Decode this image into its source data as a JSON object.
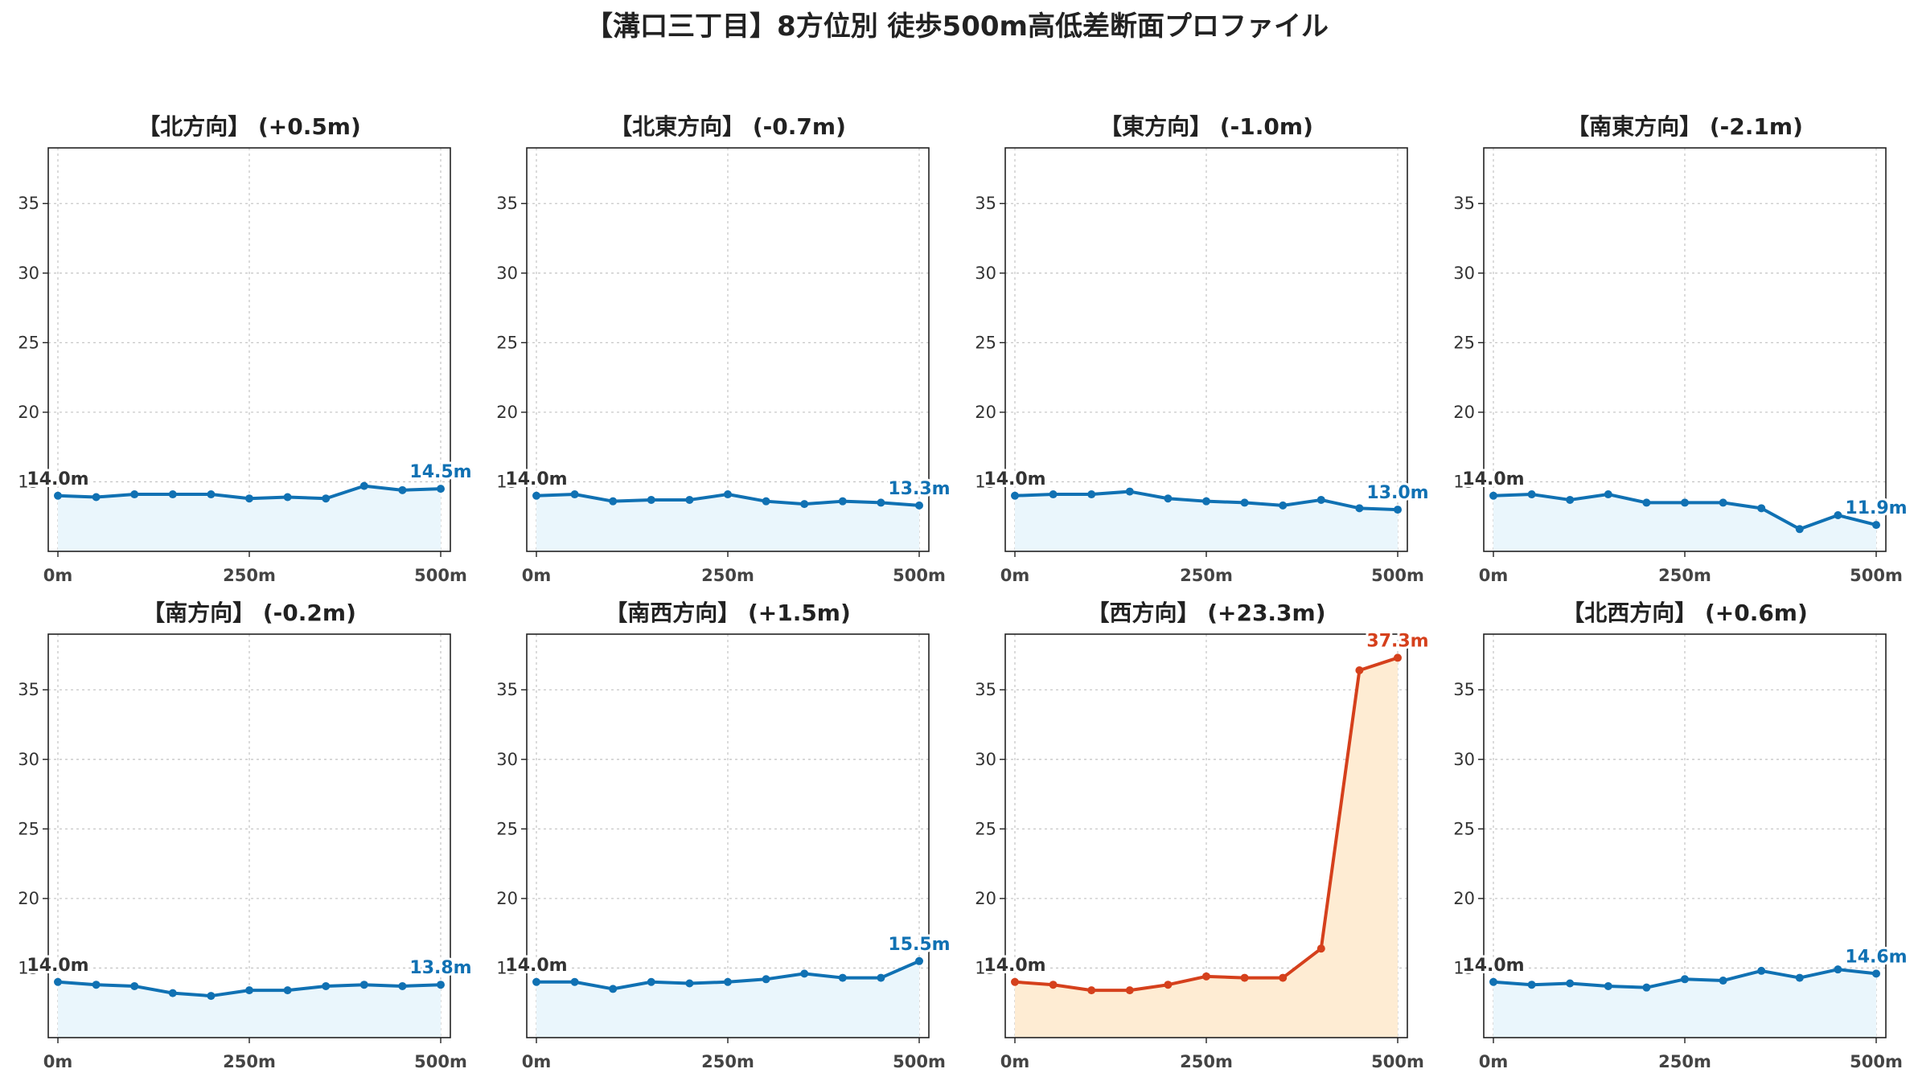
{
  "title": "【溝口三丁目】8方位別 徒歩500m高低差断面プロファイル",
  "colors": {
    "normal_line": "#1071b3",
    "normal_fill": "#eaf6fc",
    "highlight_line": "#d5401c",
    "highlight_fill": "#feecd3",
    "start_label": "#333333"
  },
  "chart_data": [
    {
      "type": "area",
      "title": "【北方向】 (+0.5m)",
      "x": [
        0,
        50,
        100,
        150,
        200,
        250,
        300,
        350,
        400,
        450,
        500
      ],
      "y": [
        14.0,
        13.9,
        14.1,
        14.1,
        14.1,
        13.8,
        13.9,
        13.8,
        14.7,
        14.4,
        14.5
      ],
      "ylim": [
        10.0,
        39.0
      ],
      "yticks": [
        15,
        20,
        25,
        30,
        35
      ],
      "xticks": [
        0,
        250,
        500
      ],
      "xtick_labels": [
        "0m",
        "250m",
        "500m"
      ],
      "start_label": "14.0m",
      "end_label": "14.5m",
      "highlight": false,
      "grid": true
    },
    {
      "type": "area",
      "title": "【北東方向】 (-0.7m)",
      "x": [
        0,
        50,
        100,
        150,
        200,
        250,
        300,
        350,
        400,
        450,
        500
      ],
      "y": [
        14.0,
        14.1,
        13.6,
        13.7,
        13.7,
        14.1,
        13.6,
        13.4,
        13.6,
        13.5,
        13.3
      ],
      "ylim": [
        10.0,
        39.0
      ],
      "yticks": [
        15,
        20,
        25,
        30,
        35
      ],
      "xticks": [
        0,
        250,
        500
      ],
      "xtick_labels": [
        "0m",
        "250m",
        "500m"
      ],
      "start_label": "14.0m",
      "end_label": "13.3m",
      "highlight": false,
      "grid": true
    },
    {
      "type": "area",
      "title": "【東方向】 (-1.0m)",
      "x": [
        0,
        50,
        100,
        150,
        200,
        250,
        300,
        350,
        400,
        450,
        500
      ],
      "y": [
        14.0,
        14.1,
        14.1,
        14.3,
        13.8,
        13.6,
        13.5,
        13.3,
        13.7,
        13.1,
        13.0
      ],
      "ylim": [
        10.0,
        39.0
      ],
      "yticks": [
        15,
        20,
        25,
        30,
        35
      ],
      "xticks": [
        0,
        250,
        500
      ],
      "xtick_labels": [
        "0m",
        "250m",
        "500m"
      ],
      "start_label": "14.0m",
      "end_label": "13.0m",
      "highlight": false,
      "grid": true
    },
    {
      "type": "area",
      "title": "【南東方向】 (-2.1m)",
      "x": [
        0,
        50,
        100,
        150,
        200,
        250,
        300,
        350,
        400,
        450,
        500
      ],
      "y": [
        14.0,
        14.1,
        13.7,
        14.1,
        13.5,
        13.5,
        13.5,
        13.1,
        11.6,
        12.6,
        11.9
      ],
      "ylim": [
        10.0,
        39.0
      ],
      "yticks": [
        15,
        20,
        25,
        30,
        35
      ],
      "xticks": [
        0,
        250,
        500
      ],
      "xtick_labels": [
        "0m",
        "250m",
        "500m"
      ],
      "start_label": "14.0m",
      "end_label": "11.9m",
      "highlight": false,
      "grid": true
    },
    {
      "type": "area",
      "title": "【南方向】 (-0.2m)",
      "x": [
        0,
        50,
        100,
        150,
        200,
        250,
        300,
        350,
        400,
        450,
        500
      ],
      "y": [
        14.0,
        13.8,
        13.7,
        13.2,
        13.0,
        13.4,
        13.4,
        13.7,
        13.8,
        13.7,
        13.8
      ],
      "ylim": [
        10.0,
        39.0
      ],
      "yticks": [
        15,
        20,
        25,
        30,
        35
      ],
      "xticks": [
        0,
        250,
        500
      ],
      "xtick_labels": [
        "0m",
        "250m",
        "500m"
      ],
      "start_label": "14.0m",
      "end_label": "13.8m",
      "highlight": false,
      "grid": true
    },
    {
      "type": "area",
      "title": "【南西方向】 (+1.5m)",
      "x": [
        0,
        50,
        100,
        150,
        200,
        250,
        300,
        350,
        400,
        450,
        500
      ],
      "y": [
        14.0,
        14.0,
        13.5,
        14.0,
        13.9,
        14.0,
        14.2,
        14.6,
        14.3,
        14.3,
        15.5
      ],
      "ylim": [
        10.0,
        39.0
      ],
      "yticks": [
        15,
        20,
        25,
        30,
        35
      ],
      "xticks": [
        0,
        250,
        500
      ],
      "xtick_labels": [
        "0m",
        "250m",
        "500m"
      ],
      "start_label": "14.0m",
      "end_label": "15.5m",
      "highlight": false,
      "grid": true
    },
    {
      "type": "area",
      "title": "【西方向】 (+23.3m)",
      "x": [
        0,
        50,
        100,
        150,
        200,
        250,
        300,
        350,
        400,
        450,
        500
      ],
      "y": [
        14.0,
        13.8,
        13.4,
        13.4,
        13.8,
        14.4,
        14.3,
        14.3,
        16.4,
        36.4,
        37.3
      ],
      "ylim": [
        10.0,
        39.0
      ],
      "yticks": [
        15,
        20,
        25,
        30,
        35
      ],
      "xticks": [
        0,
        250,
        500
      ],
      "xtick_labels": [
        "0m",
        "250m",
        "500m"
      ],
      "start_label": "14.0m",
      "end_label": "37.3m",
      "highlight": true,
      "grid": true
    },
    {
      "type": "area",
      "title": "【北西方向】 (+0.6m)",
      "x": [
        0,
        50,
        100,
        150,
        200,
        250,
        300,
        350,
        400,
        450,
        500
      ],
      "y": [
        14.0,
        13.8,
        13.9,
        13.7,
        13.6,
        14.2,
        14.1,
        14.8,
        14.3,
        14.9,
        14.6
      ],
      "ylim": [
        10.0,
        39.0
      ],
      "yticks": [
        15,
        20,
        25,
        30,
        35
      ],
      "xticks": [
        0,
        250,
        500
      ],
      "xtick_labels": [
        "0m",
        "250m",
        "500m"
      ],
      "start_label": "14.0m",
      "end_label": "14.6m",
      "highlight": false,
      "grid": true
    }
  ]
}
